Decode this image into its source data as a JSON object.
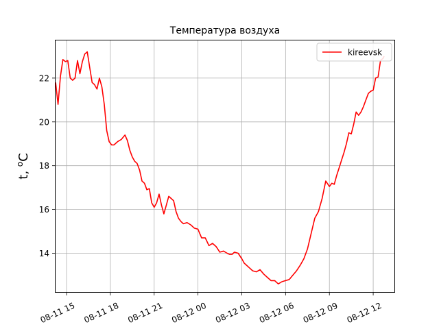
{
  "chart_data": {
    "type": "line",
    "title": "Температура воздуха",
    "ylabel": "t, °C",
    "ylabel_parts": {
      "prefix": "t, ",
      "superscript": "o",
      "suffix": "C"
    },
    "xlabel": "",
    "grid": true,
    "legend_placement": "top-right",
    "xlim": [
      "2023-08-11 14:12",
      "2023-08-12 13:30"
    ],
    "ylim": [
      12.2,
      23.75
    ],
    "x_ticks": [
      "2023-08-11 15:00",
      "2023-08-11 18:00",
      "2023-08-11 21:00",
      "2023-08-12 00:00",
      "2023-08-12 03:00",
      "2023-08-12 06:00",
      "2023-08-12 09:00",
      "2023-08-12 12:00"
    ],
    "x_tick_labels": [
      "08-11 15",
      "08-11 18",
      "08-11 21",
      "08-12 00",
      "08-12 03",
      "08-12 06",
      "08-12 09",
      "08-12 12"
    ],
    "y_ticks": [
      14,
      16,
      18,
      20,
      22
    ],
    "y_tick_labels": [
      "14",
      "16",
      "18",
      "20",
      "22"
    ],
    "series": [
      {
        "name": "kireevsk",
        "color": "#ff0000",
        "x": [
          "2023-08-11 14:15",
          "2023-08-11 14:25",
          "2023-08-11 14:35",
          "2023-08-11 14:45",
          "2023-08-11 14:55",
          "2023-08-11 15:05",
          "2023-08-11 15:15",
          "2023-08-11 15:25",
          "2023-08-11 15:35",
          "2023-08-11 15:45",
          "2023-08-11 15:55",
          "2023-08-11 16:05",
          "2023-08-11 16:15",
          "2023-08-11 16:25",
          "2023-08-11 16:35",
          "2023-08-11 16:45",
          "2023-08-11 16:55",
          "2023-08-11 17:05",
          "2023-08-11 17:15",
          "2023-08-11 17:25",
          "2023-08-11 17:35",
          "2023-08-11 17:45",
          "2023-08-11 17:55",
          "2023-08-11 18:05",
          "2023-08-11 18:15",
          "2023-08-11 18:30",
          "2023-08-11 18:45",
          "2023-08-11 19:00",
          "2023-08-11 19:10",
          "2023-08-11 19:20",
          "2023-08-11 19:30",
          "2023-08-11 19:40",
          "2023-08-11 19:50",
          "2023-08-11 20:00",
          "2023-08-11 20:10",
          "2023-08-11 20:20",
          "2023-08-11 20:30",
          "2023-08-11 20:40",
          "2023-08-11 20:50",
          "2023-08-11 21:00",
          "2023-08-11 21:10",
          "2023-08-11 21:20",
          "2023-08-11 21:30",
          "2023-08-11 21:40",
          "2023-08-11 21:50",
          "2023-08-11 22:00",
          "2023-08-11 22:10",
          "2023-08-11 22:20",
          "2023-08-11 22:30",
          "2023-08-11 22:40",
          "2023-08-11 22:50",
          "2023-08-11 23:00",
          "2023-08-11 23:15",
          "2023-08-11 23:30",
          "2023-08-11 23:45",
          "2023-08-12 00:00",
          "2023-08-12 00:15",
          "2023-08-12 00:30",
          "2023-08-12 00:45",
          "2023-08-12 01:00",
          "2023-08-12 01:15",
          "2023-08-12 01:30",
          "2023-08-12 01:45",
          "2023-08-12 02:00",
          "2023-08-12 02:10",
          "2023-08-12 02:20",
          "2023-08-12 02:30",
          "2023-08-12 02:45",
          "2023-08-12 03:00",
          "2023-08-12 03:10",
          "2023-08-12 03:20",
          "2023-08-12 03:30",
          "2023-08-12 03:45",
          "2023-08-12 04:00",
          "2023-08-12 04:15",
          "2023-08-12 04:30",
          "2023-08-12 04:45",
          "2023-08-12 05:00",
          "2023-08-12 05:15",
          "2023-08-12 05:30",
          "2023-08-12 05:45",
          "2023-08-12 06:00",
          "2023-08-12 06:15",
          "2023-08-12 06:30",
          "2023-08-12 06:45",
          "2023-08-12 07:00",
          "2023-08-12 07:15",
          "2023-08-12 07:30",
          "2023-08-12 07:45",
          "2023-08-12 08:00",
          "2023-08-12 08:15",
          "2023-08-12 08:30",
          "2023-08-12 08:45",
          "2023-08-12 09:00",
          "2023-08-12 09:10",
          "2023-08-12 09:20",
          "2023-08-12 09:30",
          "2023-08-12 09:40",
          "2023-08-12 09:50",
          "2023-08-12 10:00",
          "2023-08-12 10:10",
          "2023-08-12 10:20",
          "2023-08-12 10:30",
          "2023-08-12 10:40",
          "2023-08-12 10:50",
          "2023-08-12 11:00",
          "2023-08-12 11:10",
          "2023-08-12 11:20",
          "2023-08-12 11:30",
          "2023-08-12 11:40",
          "2023-08-12 11:50",
          "2023-08-12 12:00",
          "2023-08-12 12:10",
          "2023-08-12 12:20",
          "2023-08-12 12:30",
          "2023-08-12 12:40",
          "2023-08-12 12:45"
        ],
        "y": [
          21.8,
          20.8,
          22.1,
          22.85,
          22.75,
          22.8,
          22.0,
          21.9,
          22.0,
          22.8,
          22.2,
          22.75,
          23.1,
          23.2,
          22.5,
          21.8,
          21.7,
          21.5,
          22.0,
          21.6,
          20.8,
          19.6,
          19.1,
          18.95,
          18.95,
          19.1,
          19.2,
          19.4,
          19.15,
          18.7,
          18.4,
          18.2,
          18.1,
          17.8,
          17.3,
          17.2,
          16.9,
          16.95,
          16.3,
          16.1,
          16.3,
          16.7,
          16.2,
          15.8,
          16.2,
          16.6,
          16.5,
          16.4,
          15.9,
          15.6,
          15.45,
          15.35,
          15.4,
          15.3,
          15.15,
          15.1,
          14.7,
          14.7,
          14.35,
          14.45,
          14.3,
          14.05,
          14.1,
          14.0,
          13.95,
          13.95,
          14.05,
          14.0,
          13.75,
          13.55,
          13.45,
          13.35,
          13.2,
          13.15,
          13.25,
          13.05,
          12.9,
          12.75,
          12.75,
          12.6,
          12.7,
          12.75,
          12.8,
          13.0,
          13.2,
          13.45,
          13.75,
          14.2,
          14.9,
          15.6,
          15.9,
          16.5,
          17.3,
          17.05,
          17.2,
          17.15,
          17.55,
          17.9,
          18.25,
          18.6,
          19.0,
          19.5,
          19.45,
          19.9,
          20.45,
          20.3,
          20.45,
          20.7,
          21.0,
          21.3,
          21.4,
          21.45,
          22.0,
          22.05,
          22.8,
          22.9,
          23.0
        ]
      }
    ]
  }
}
